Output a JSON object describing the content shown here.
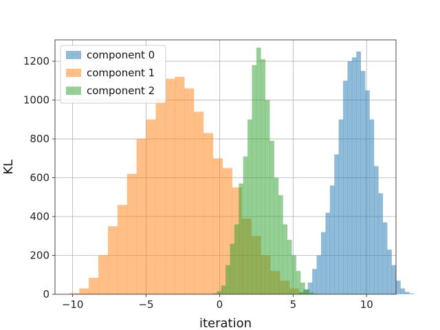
{
  "chart_data": {
    "type": "bar",
    "subtype": "histogram",
    "xlabel": "iteration",
    "ylabel": "KL",
    "xlim": [
      -11.2,
      12.0
    ],
    "ylim": [
      0,
      1310
    ],
    "grid": true,
    "legend_position": "top-left",
    "x_ticks": [
      -10,
      -5,
      0,
      5,
      10
    ],
    "x_tick_labels": [
      "−10",
      "−5",
      "0",
      "5",
      "10"
    ],
    "y_ticks": [
      0,
      200,
      400,
      600,
      800,
      1000,
      1200
    ],
    "y_tick_labels": [
      "0",
      "200",
      "400",
      "600",
      "800",
      "1000",
      "1200"
    ],
    "series": [
      {
        "name": "component 0",
        "color": "#1f77b4",
        "opacity": 0.5,
        "bins_start": 5.1,
        "bin_width": 0.3,
        "values": [
          3,
          10,
          25,
          60,
          130,
          200,
          320,
          420,
          560,
          720,
          900,
          1100,
          1200,
          1220,
          1250,
          1150,
          1050,
          900,
          660,
          520,
          370,
          230,
          150,
          70,
          30,
          12,
          4
        ]
      },
      {
        "name": "component 1",
        "color": "#ff7f0e",
        "opacity": 0.5,
        "bins_start": -10.2,
        "bin_width": 0.65,
        "values": [
          5,
          30,
          85,
          200,
          350,
          460,
          620,
          800,
          900,
          1010,
          1110,
          1120,
          1060,
          940,
          830,
          700,
          650,
          550,
          390,
          300,
          200,
          120,
          70,
          30,
          10
        ]
      },
      {
        "name": "component 2",
        "color": "#2ca02c",
        "opacity": 0.5,
        "bins_start": -0.5,
        "bin_width": 0.3,
        "values": [
          5,
          15,
          45,
          150,
          260,
          360,
          570,
          710,
          900,
          1180,
          1270,
          1210,
          1000,
          790,
          600,
          510,
          360,
          280,
          200,
          120,
          60,
          25,
          10,
          3
        ]
      }
    ]
  }
}
